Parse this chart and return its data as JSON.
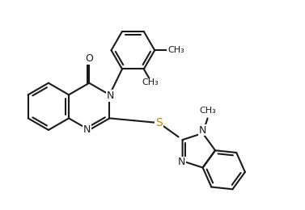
{
  "bg_color": "#ffffff",
  "line_color": "#1a1a1a",
  "S_color": "#b8860b",
  "line_width": 1.5,
  "font_size": 9,
  "fig_width": 3.77,
  "fig_height": 2.6,
  "dpi": 100,
  "xlim": [
    0,
    10
  ],
  "ylim": [
    0,
    6.9
  ]
}
